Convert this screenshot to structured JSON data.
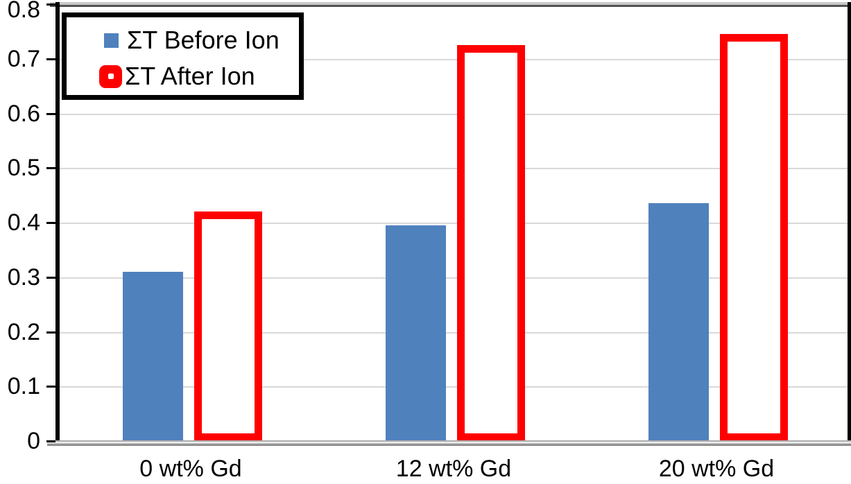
{
  "chart_data": {
    "type": "bar",
    "categories": [
      "0 wt% Gd",
      "12 wt% Gd",
      "20 wt% Gd"
    ],
    "series": [
      {
        "name": "ΣT Before Ion",
        "values": [
          0.31,
          0.395,
          0.435
        ],
        "bar_style": "solid-fill",
        "color": "#4F81BD"
      },
      {
        "name": "ΣT After Ion",
        "values": [
          0.42,
          0.725,
          0.745
        ],
        "bar_style": "hollow-outline",
        "color": "#FF0000"
      }
    ],
    "title": "",
    "xlabel": "",
    "ylabel": "",
    "ylim": [
      0,
      0.8
    ],
    "ytick_labels": [
      "0.8",
      "0.7",
      "0.6",
      "0.5",
      "0.4",
      "0.3",
      "0.2",
      "0.1",
      "0"
    ],
    "grid": true,
    "gridline_color": "#D9D9D9",
    "legend_position": "top-left"
  }
}
